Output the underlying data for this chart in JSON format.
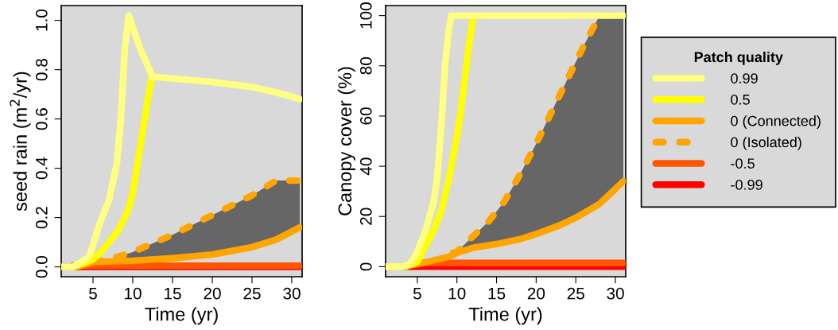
{
  "chart_data": [
    {
      "type": "line",
      "xlabel": "Time (yr)",
      "ylabel": "seed rain (m$^{2}$/yr)",
      "xlim": [
        1,
        31.3
      ],
      "xticks": [
        5,
        10,
        15,
        20,
        25,
        30
      ],
      "ylim": [
        -0.04,
        1.06
      ],
      "yticks": [
        {
          "value": 0,
          "label": "0.0"
        },
        0.2,
        0.4,
        0.6,
        0.8,
        {
          "value": 1,
          "label": "1.0"
        }
      ],
      "grid": false,
      "legend": false,
      "line_style": "solid",
      "marker": "none",
      "series": [
        {
          "color": "#ffff80",
          "x": [
            1,
            2.5,
            4.5,
            6,
            7,
            8,
            8.5,
            9,
            9.5,
            10,
            11,
            12.5,
            13,
            20,
            25,
            29,
            31
          ],
          "values": [
            0,
            0,
            0.04,
            0.19,
            0.27,
            0.42,
            0.6,
            0.89,
            1.02,
            0.97,
            0.88,
            0.77,
            0.77,
            0.75,
            0.73,
            0.7,
            0.68
          ]
        },
        {
          "color": "#ffff00",
          "x": [
            2.5,
            5,
            6,
            7,
            8,
            9,
            9.5,
            10,
            10.5,
            11,
            11.5,
            12,
            12.4
          ],
          "values": [
            0,
            0.03,
            0.06,
            0.1,
            0.14,
            0.2,
            0.24,
            0.3,
            0.4,
            0.5,
            0.6,
            0.7,
            0.77
          ]
        },
        {
          "color": "#ffa500",
          "x": [
            1,
            3,
            5,
            10,
            15,
            20,
            25,
            28,
            31
          ],
          "values": [
            0,
            0,
            0.02,
            0.025,
            0.035,
            0.05,
            0.08,
            0.11,
            0.16
          ]
        },
        {
          "color": "#ffa500",
          "line_style": "dashed",
          "x": [
            5,
            7,
            10,
            15,
            20,
            25,
            28,
            31
          ],
          "values": [
            0.02,
            0.03,
            0.06,
            0.13,
            0.21,
            0.29,
            0.35,
            0.35
          ],
          "lower": [
            0.02,
            0.022,
            0.025,
            0.035,
            0.05,
            0.08,
            0.11,
            0.16
          ],
          "upper": [
            0.02,
            0.03,
            0.06,
            0.13,
            0.21,
            0.29,
            0.35,
            0.35
          ]
        },
        {
          "color": "#ff5500",
          "x": [
            2.5,
            31
          ],
          "values": [
            0.005,
            0.005
          ]
        },
        {
          "color": "#ff0000",
          "x": [
            2.5,
            31
          ],
          "values": [
            0,
            0
          ]
        }
      ]
    },
    {
      "type": "line",
      "xlabel": "Time (yr)",
      "ylabel": "Canopy cover (%)",
      "xlim": [
        1,
        31.3
      ],
      "xticks": [
        5,
        10,
        15,
        20,
        25,
        30
      ],
      "ylim": [
        -4,
        104
      ],
      "yticks": [
        0,
        20,
        40,
        60,
        80,
        100
      ],
      "grid": false,
      "legend": "right",
      "legend_title": "Patch quality",
      "line_style": "solid",
      "marker": "none",
      "series": [
        {
          "name": "0.99",
          "color": "#ffff80",
          "x": [
            1,
            3,
            4,
            4.5,
            5,
            6,
            7,
            7.5,
            8,
            8.5,
            9,
            9.3,
            31
          ],
          "values": [
            0,
            0,
            1,
            3,
            6,
            14,
            25,
            35,
            55,
            80,
            95,
            100,
            100
          ]
        },
        {
          "name": "0.5",
          "color": "#ffff00",
          "x": [
            1,
            3.5,
            5,
            6,
            7,
            8,
            9,
            10,
            10.5,
            11,
            11.5,
            12,
            12.3
          ],
          "values": [
            0,
            0,
            2,
            8,
            14,
            22,
            35,
            52,
            62,
            75,
            88,
            98,
            100
          ]
        },
        {
          "name": "0 (Connected)",
          "color": "#ffa500",
          "x": [
            1,
            3,
            5,
            7,
            9,
            10,
            12,
            15,
            18,
            20,
            23,
            25,
            28,
            31
          ],
          "values": [
            0,
            0,
            1,
            2.5,
            4,
            5.5,
            7.5,
            9,
            11,
            13,
            16.5,
            19.5,
            25,
            34
          ]
        },
        {
          "name": "0 (Isolated)",
          "color": "#ffa500",
          "line_style": "dashed",
          "x": [
            9.5,
            10,
            12,
            14,
            16,
            18,
            20,
            22,
            24,
            26,
            28,
            31
          ],
          "values": [
            5.5,
            6,
            12,
            18,
            26,
            37,
            49,
            62,
            75,
            88,
            100,
            100
          ],
          "lower": [
            5,
            5.5,
            7.5,
            8.3,
            9.5,
            11,
            13,
            15,
            18,
            21.5,
            25,
            34
          ],
          "upper": [
            5.5,
            6,
            12,
            18,
            26,
            37,
            49,
            62,
            75,
            88,
            100,
            100
          ]
        },
        {
          "name": "-0.5",
          "color": "#ff5500",
          "x": [
            3,
            5,
            31
          ],
          "values": [
            0,
            1.5,
            1.5
          ]
        },
        {
          "name": "-0.99",
          "color": "#ff0000",
          "x": [
            3,
            31
          ],
          "values": [
            0,
            0
          ]
        }
      ]
    }
  ]
}
